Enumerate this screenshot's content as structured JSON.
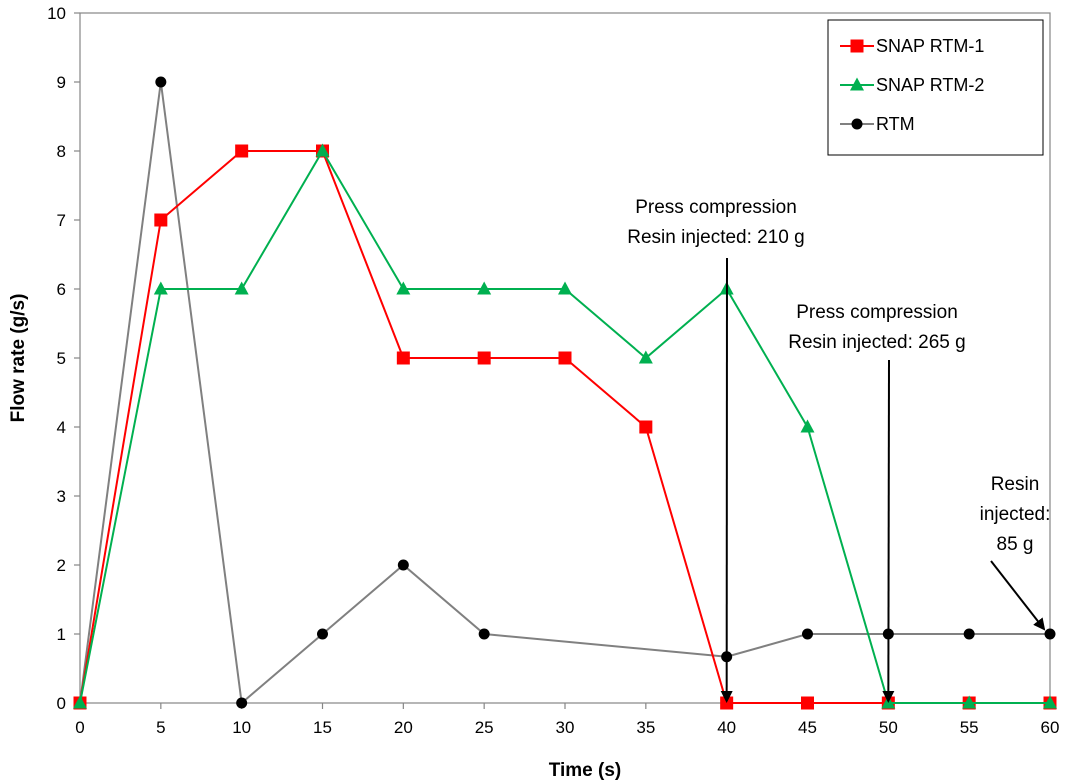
{
  "chart_data": {
    "type": "line",
    "title": "",
    "xlabel": "Time (s)",
    "ylabel": "Flow rate (g/s)",
    "xlim": [
      0,
      60
    ],
    "ylim": [
      0,
      10
    ],
    "xticks": [
      0,
      5,
      10,
      15,
      20,
      25,
      30,
      35,
      40,
      45,
      50,
      55,
      60
    ],
    "yticks": [
      0,
      1,
      2,
      3,
      4,
      5,
      6,
      7,
      8,
      9,
      10
    ],
    "grid": false,
    "legend_position": "top-right",
    "series": [
      {
        "name": "SNAP RTM-1",
        "color": "#ff0000",
        "marker": "square",
        "x": [
          0,
          5,
          10,
          15,
          20,
          25,
          30,
          35,
          40,
          45,
          50,
          55,
          60
        ],
        "y": [
          0,
          7,
          8,
          8,
          5,
          5,
          5,
          4,
          0,
          0,
          0,
          0,
          0
        ]
      },
      {
        "name": "SNAP RTM-2",
        "color": "#00b050",
        "marker": "triangle",
        "x": [
          0,
          5,
          10,
          15,
          20,
          25,
          30,
          35,
          40,
          45,
          50,
          55,
          60
        ],
        "y": [
          0,
          6,
          6,
          8,
          6,
          6,
          6,
          5,
          6,
          4,
          0,
          0,
          0
        ]
      },
      {
        "name": "RTM",
        "color": "#808080",
        "marker": "circle",
        "x": [
          0,
          5,
          10,
          15,
          20,
          25,
          40,
          45,
          50,
          55,
          60
        ],
        "y": [
          0,
          9,
          0,
          1,
          2,
          1,
          0.67,
          1,
          1,
          1,
          1
        ]
      }
    ],
    "annotations": [
      {
        "lines": [
          "Press compression",
          "Resin injected: 210 g"
        ],
        "arrow_to": [
          40,
          0
        ]
      },
      {
        "lines": [
          "Press compression",
          "Resin injected: 265 g"
        ],
        "arrow_to": [
          50,
          0
        ]
      },
      {
        "lines": [
          "Resin",
          "injected:",
          "85 g"
        ],
        "arrow_to": [
          60,
          1
        ]
      }
    ]
  }
}
